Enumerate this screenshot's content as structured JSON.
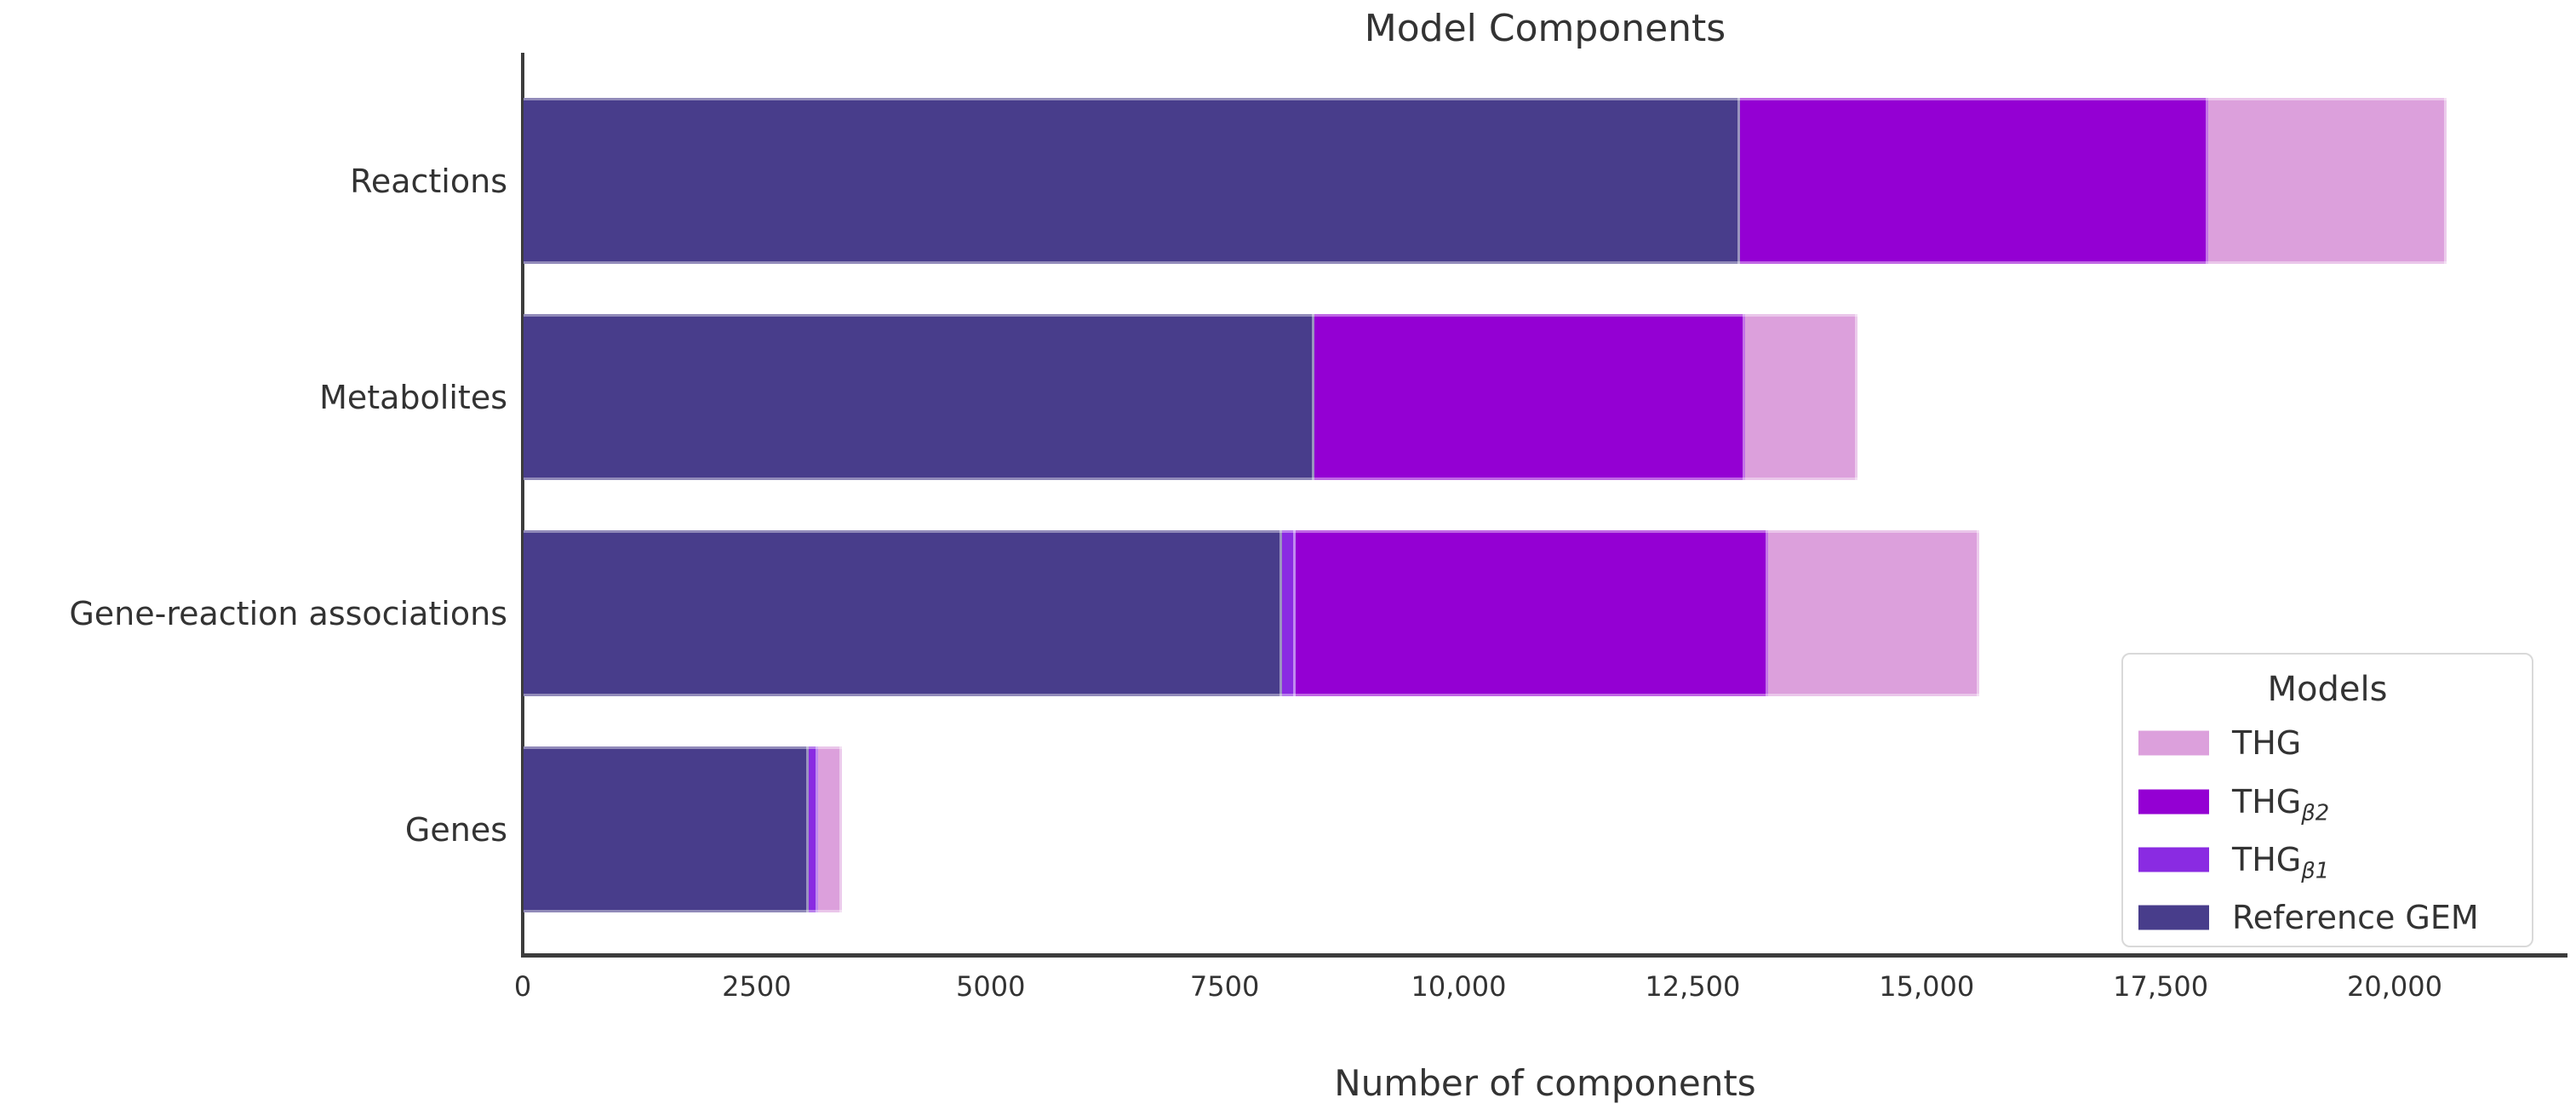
{
  "chart_data": {
    "type": "bar",
    "orientation": "horizontal",
    "mode": "overlay",
    "title": "Model Components",
    "xlabel": "Number of components",
    "legend": {
      "title": "Models",
      "position": "lower right"
    },
    "categories": [
      "Reactions",
      "Metabolites",
      "Gene-reaction associations",
      "Genes"
    ],
    "series": [
      {
        "name": "THG",
        "label_base": "THG",
        "label_sub": "",
        "color": "#DCA0DC",
        "values": [
          20550,
          14250,
          15550,
          3400
        ]
      },
      {
        "name": "THG_beta2",
        "label_base": "THG",
        "label_sub": "β2",
        "color": "#9400D3",
        "values": [
          18000,
          13050,
          13300,
          3150
        ]
      },
      {
        "name": "THG_beta1",
        "label_base": "THG",
        "label_sub": "β1",
        "color": "#8A2BE2",
        "values": [
          13000,
          8450,
          8250,
          3150
        ]
      },
      {
        "name": "Reference GEM",
        "label_base": "Reference GEM",
        "label_sub": "",
        "color": "#483D8B",
        "values": [
          13000,
          8450,
          8100,
          3050
        ]
      }
    ],
    "x_ticks": [
      {
        "value": 0,
        "label": "0"
      },
      {
        "value": 2500,
        "label": "2500"
      },
      {
        "value": 5000,
        "label": "5000"
      },
      {
        "value": 7500,
        "label": "7500"
      },
      {
        "value": 10000,
        "label": "10,000"
      },
      {
        "value": 12500,
        "label": "12,500"
      },
      {
        "value": 15000,
        "label": "15,000"
      },
      {
        "value": 17500,
        "label": "17,500"
      },
      {
        "value": 20000,
        "label": "20,000"
      }
    ],
    "xlim": [
      0,
      21830
    ],
    "grid": false
  }
}
